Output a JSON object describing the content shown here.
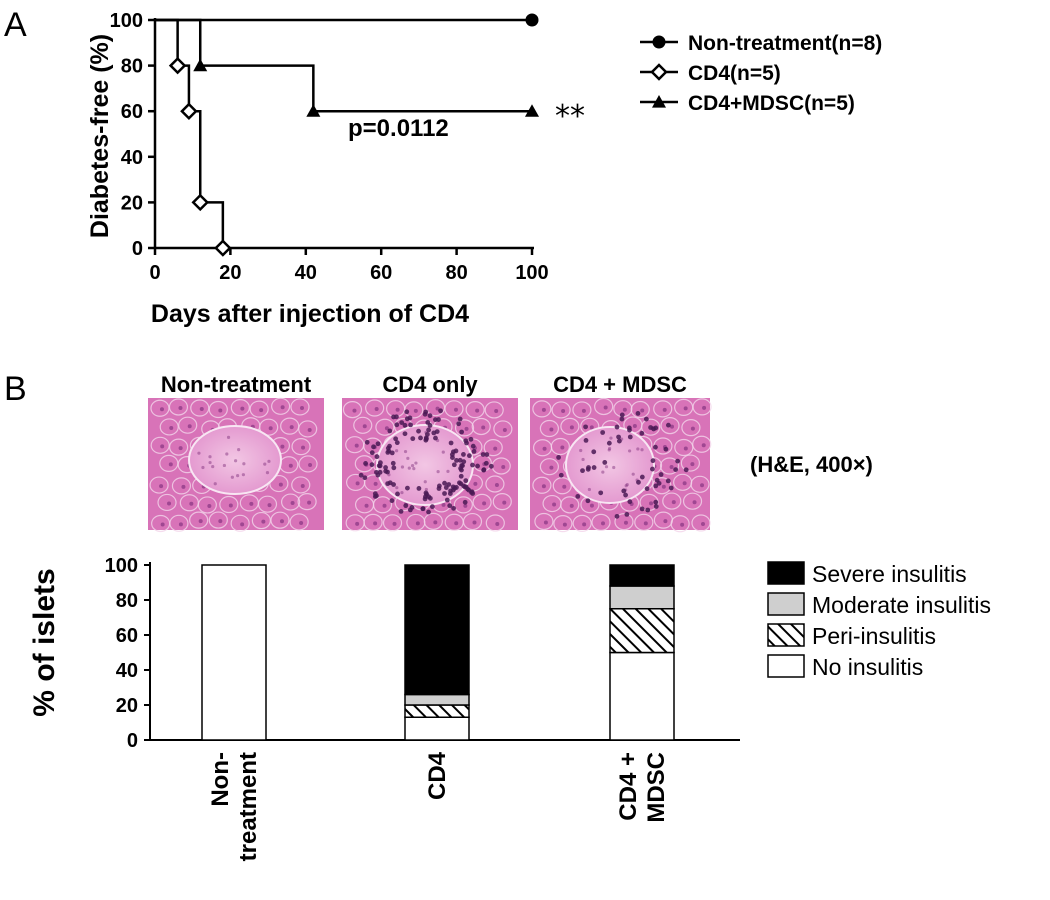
{
  "panel_a_label": "A",
  "panel_b_label": "B",
  "chart_data": [
    {
      "type": "line",
      "step": true,
      "xlabel": "Days after injection of CD4",
      "ylabel": "Diabetes-free (%)",
      "xlim": [
        0,
        100
      ],
      "ylim": [
        0,
        100
      ],
      "xticks": [
        0,
        20,
        40,
        60,
        80,
        100
      ],
      "yticks": [
        0,
        20,
        40,
        60,
        80,
        100
      ],
      "grid": false,
      "legend_position": "right",
      "series": [
        {
          "name": "Non-treatment(n=8)",
          "marker": "circle",
          "x": [
            0,
            100
          ],
          "y": [
            100,
            100
          ]
        },
        {
          "name": "CD4(n=5)",
          "marker": "open-diamond",
          "x": [
            0,
            6,
            9,
            12,
            18
          ],
          "y": [
            100,
            80,
            60,
            20,
            0
          ]
        },
        {
          "name": "CD4+MDSC(n=5)",
          "marker": "triangle",
          "x": [
            0,
            12,
            42,
            100
          ],
          "y": [
            100,
            80,
            60,
            60
          ]
        }
      ],
      "annotations": {
        "pvalue": "p=0.0112",
        "significance": "**"
      }
    },
    {
      "type": "bar",
      "stacked": true,
      "ylabel": "% of islets",
      "ylim": [
        0,
        100
      ],
      "yticks": [
        0,
        20,
        40,
        60,
        80,
        100
      ],
      "categories": [
        "Non-\ntreatment",
        "CD4",
        "CD4 +\nMDSC"
      ],
      "legend_position": "right",
      "series": [
        {
          "name": "No insulitis",
          "pattern": "white",
          "values": [
            100,
            13,
            50
          ]
        },
        {
          "name": "Peri-insulitis",
          "pattern": "hatched",
          "values": [
            0,
            7,
            25
          ]
        },
        {
          "name": "Moderate insulitis",
          "pattern": "lightgray",
          "values": [
            0,
            6,
            13
          ]
        },
        {
          "name": "Severe insulitis",
          "pattern": "black",
          "values": [
            0,
            74,
            12
          ]
        }
      ]
    }
  ],
  "histology": {
    "labels": [
      "Non-treatment",
      "CD4 only",
      "CD4 + MDSC"
    ],
    "stain_note": "(H&E, 400×)"
  },
  "colors": {
    "tissue": "#d873b8",
    "tissue_dark": "#7a2a78",
    "moderate": "#cfcfcf",
    "severe": "#000000"
  }
}
